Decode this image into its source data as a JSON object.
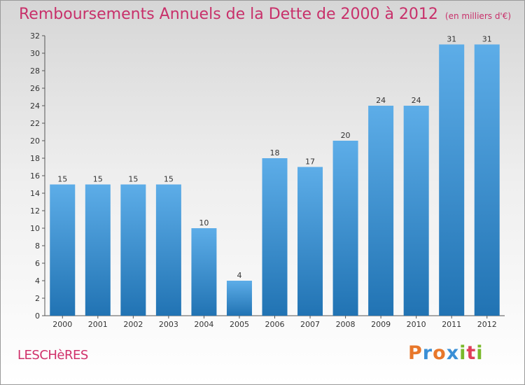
{
  "header": {
    "title": "Remboursements Annuels de la Dette de 2000 à 2012",
    "subtitle": "(en milliers d'€)"
  },
  "footer": {
    "place": "LESCHèRES",
    "logo_text": "Proxiti",
    "logo_colors": [
      "#e8772a",
      "#3a8fd6",
      "#e8772a",
      "#3a8fd6",
      "#7ab92b",
      "#e0405a",
      "#7ab92b"
    ]
  },
  "colors": {
    "bar_top": "#5dade8",
    "bar_bottom": "#2173b3",
    "accent": "#c8306a"
  },
  "chart_data": {
    "type": "bar",
    "title": "Remboursements Annuels de la Dette de 2000 à 2012",
    "subtitle": "(en milliers d'€)",
    "categories": [
      "2000",
      "2001",
      "2002",
      "2003",
      "2004",
      "2005",
      "2006",
      "2007",
      "2008",
      "2009",
      "2010",
      "2011",
      "2012"
    ],
    "values": [
      15,
      15,
      15,
      15,
      10,
      4,
      18,
      17,
      20,
      24,
      24,
      31,
      31
    ],
    "ylim": [
      0,
      32
    ],
    "yticks": [
      0,
      2,
      4,
      6,
      8,
      10,
      12,
      14,
      16,
      18,
      20,
      22,
      24,
      26,
      28,
      30,
      32
    ],
    "grid": false,
    "data_labels": true
  }
}
